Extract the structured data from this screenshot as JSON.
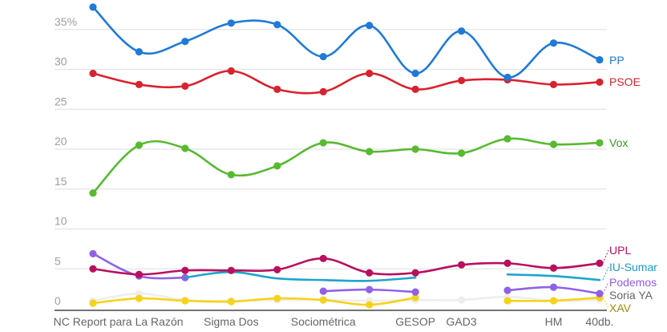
{
  "chart_data": {
    "type": "line",
    "title": "",
    "xlabel": "",
    "ylabel": "",
    "ylim": [
      0,
      38
    ],
    "y_ticks": [
      {
        "value": 0,
        "label": "0"
      },
      {
        "value": 5,
        "label": "5"
      },
      {
        "value": 10,
        "label": "10"
      },
      {
        "value": 15,
        "label": "15"
      },
      {
        "value": 20,
        "label": "20"
      },
      {
        "value": 25,
        "label": "25"
      },
      {
        "value": 30,
        "label": "30"
      },
      {
        "value": 35,
        "label": "35%"
      }
    ],
    "grid": true,
    "x_count": 12,
    "x_labels": [
      {
        "index": 0.55,
        "label": "NC Report para La Razón"
      },
      {
        "index": 3,
        "label": "Sigma Dos"
      },
      {
        "index": 5,
        "label": "Sociométrica"
      },
      {
        "index": 7,
        "label": "GESOP"
      },
      {
        "index": 8,
        "label": "GAD3"
      },
      {
        "index": 10,
        "label": "HM"
      },
      {
        "index": 11,
        "label": "40db."
      }
    ],
    "legend_placement": "right-end-labels",
    "series": [
      {
        "name": "Soria YA",
        "color": "#eeeeee",
        "label_color": "#666666",
        "markers": true,
        "values": [
          1.0,
          1.9,
          1.1,
          1.0,
          1.1,
          1.1,
          1.0,
          1.1,
          1.1,
          1.5,
          1.0,
          1.1
        ]
      },
      {
        "name": "XAV",
        "color": "#f5d31a",
        "label_color": "#a08a10",
        "markers": true,
        "values": [
          0.7,
          1.3,
          1.0,
          0.9,
          1.3,
          1.1,
          0.5,
          1.4,
          null,
          1.0,
          1.0,
          1.4
        ]
      },
      {
        "name": "Podemos",
        "color": "#9061e8",
        "label_color": "#8e5de8",
        "markers": true,
        "values": [
          6.9,
          4.1,
          3.9,
          null,
          null,
          2.2,
          2.4,
          2.1,
          null,
          2.3,
          2.7,
          1.9
        ]
      },
      {
        "name": "IU-Sumar",
        "color": "#1ea5cc",
        "label_color": "#1a9cc4",
        "markers": false,
        "values": [
          null,
          null,
          3.9,
          4.6,
          3.8,
          3.6,
          3.5,
          3.9,
          null,
          4.3,
          4.1,
          3.6
        ]
      },
      {
        "name": "UPL",
        "color": "#b8105f",
        "label_color": "#b8105f",
        "markers": true,
        "values": [
          5.0,
          4.3,
          4.8,
          4.8,
          4.9,
          6.3,
          4.5,
          4.5,
          5.5,
          5.7,
          5.1,
          5.7
        ]
      },
      {
        "name": "Vox",
        "color": "#57ba30",
        "label_color": "#3a9a1e",
        "markers": true,
        "values": [
          14.5,
          20.5,
          20.1,
          16.8,
          17.9,
          20.8,
          19.7,
          20.0,
          19.5,
          21.3,
          20.6,
          20.8
        ]
      },
      {
        "name": "PSOE",
        "color": "#d8232f",
        "label_color": "#d8232f",
        "markers": true,
        "values": [
          29.5,
          28.1,
          27.9,
          29.8,
          27.5,
          27.2,
          29.5,
          27.5,
          28.6,
          28.7,
          28.1,
          28.4
        ]
      },
      {
        "name": "PP",
        "color": "#1f7ad8",
        "label_color": "#1f7ad8",
        "markers": true,
        "values": [
          37.8,
          32.2,
          33.5,
          35.8,
          35.6,
          31.6,
          35.5,
          29.5,
          34.8,
          29.0,
          33.3,
          31.2
        ]
      }
    ],
    "end_labels": [
      "PP",
      "PSOE",
      "Vox",
      "UPL",
      "IU-Sumar",
      "Podemos",
      "Soria YA",
      "XAV"
    ]
  }
}
